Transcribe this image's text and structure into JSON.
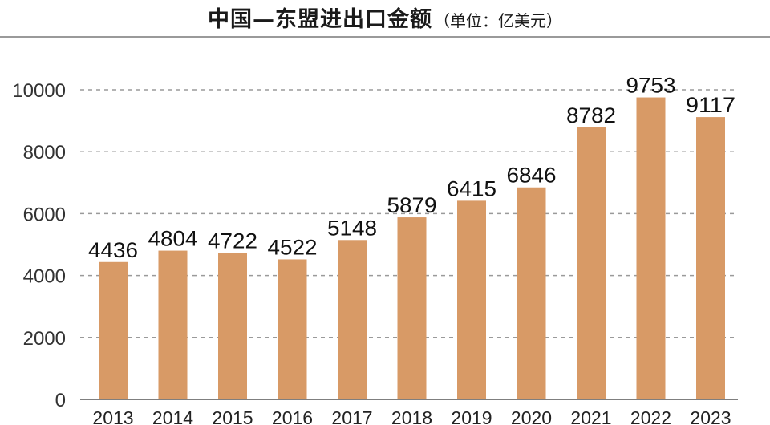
{
  "title": "中国—东盟进出口金额",
  "title_unit": "（单位：亿美元）",
  "chart_data": {
    "type": "bar",
    "title": "中国—东盟进出口金额",
    "subtitle": "（单位：亿美元）",
    "categories": [
      "2013",
      "2014",
      "2015",
      "2016",
      "2017",
      "2018",
      "2019",
      "2020",
      "2021",
      "2022",
      "2023"
    ],
    "values": [
      4436,
      4804,
      4722,
      4522,
      5148,
      5879,
      6415,
      6846,
      8782,
      9753,
      9117
    ],
    "ylim": [
      0,
      10000
    ],
    "yticks": [
      "0",
      "2000",
      "4000",
      "6000",
      "8000",
      "10000"
    ],
    "grid": true,
    "bar_color": "#d89a66",
    "grid_color": "#9a9a9a"
  }
}
